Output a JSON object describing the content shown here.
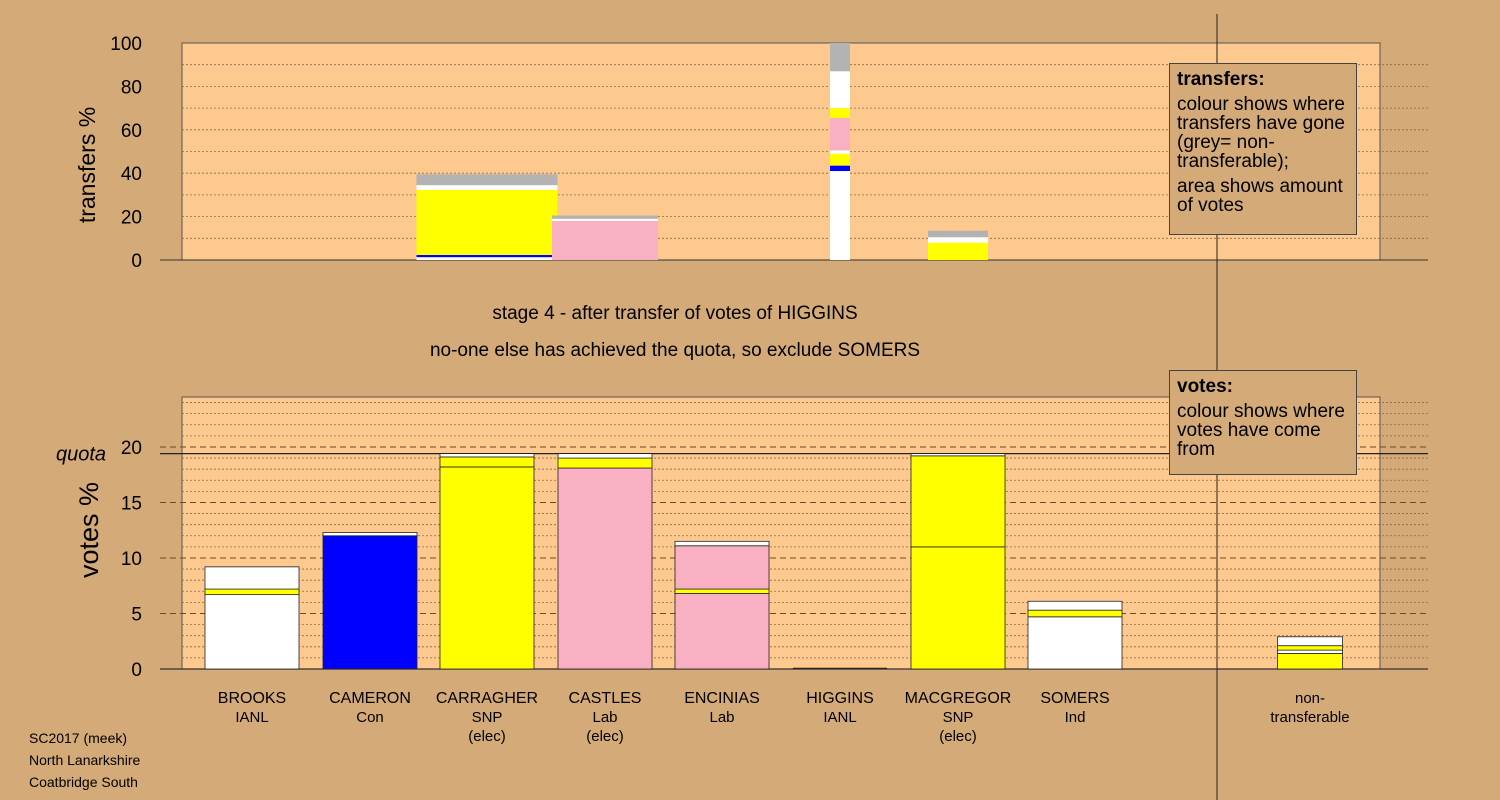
{
  "top_chart": {
    "ylabel": "transfers %",
    "yticks": [
      "0",
      "20",
      "40",
      "60",
      "80",
      "100"
    ]
  },
  "bottom_chart": {
    "ylabel": "votes %",
    "yticks": [
      "0",
      "5",
      "10",
      "15",
      "20"
    ],
    "quota_label": "quota"
  },
  "stage_lines": [
    "stage 4 - after transfer of votes of HIGGINS",
    "no-one else has achieved the quota, so exclude SOMERS"
  ],
  "legend_transfers": {
    "title": "transfers:",
    "text1": "colour shows where transfers have gone (grey= non-transferable);",
    "text2": "area shows amount of votes"
  },
  "legend_votes": {
    "title": "votes:",
    "text1": "colour shows where votes have come from"
  },
  "credits": [
    "SC2017 (meek)",
    "North Lanarkshire",
    "Coatbridge South"
  ],
  "colors": {
    "background": "#d4aa78",
    "plot_area": "#fdc98e",
    "SNP": "#ffff00",
    "Lab": "#f9b0c3",
    "Con": "#0000ff",
    "Ind": "#ffffff",
    "IANL": "#ffffff",
    "non_transferable": "#b3b3b3"
  },
  "chart_data": [
    {
      "type": "bar",
      "name": "transfers",
      "ylabel": "transfers %",
      "ylim": [
        0,
        100
      ],
      "grid": true,
      "bars": [
        {
          "candidate": "CARRAGHER",
          "segments": [
            {
              "color": "white",
              "value": 1.3
            },
            {
              "color": "blue",
              "value": 1.0
            },
            {
              "color": "yellow",
              "value": 3.5
            },
            {
              "color": "yellow",
              "value": 26.5
            },
            {
              "color": "white",
              "value": 2.2
            },
            {
              "color": "grey",
              "value": 5.0
            }
          ]
        },
        {
          "candidate": "CASTLES",
          "segments": [
            {
              "color": "pink",
              "value": 18.0
            },
            {
              "color": "white",
              "value": 1.0
            },
            {
              "color": "grey",
              "value": 1.5
            }
          ]
        },
        {
          "candidate": "HIGGINS",
          "segments": [
            {
              "color": "white",
              "value": 41.0
            },
            {
              "color": "blue",
              "value": 2.5
            },
            {
              "color": "yellow",
              "value": 5.5
            },
            {
              "color": "white",
              "value": 1.5
            },
            {
              "color": "pink",
              "value": 15.0
            },
            {
              "color": "yellow",
              "value": 4.5
            },
            {
              "color": "white",
              "value": 17.0
            },
            {
              "color": "grey",
              "value": 13.0
            }
          ]
        },
        {
          "candidate": "MACGREGOR",
          "segments": [
            {
              "color": "yellow",
              "value": 8.0
            },
            {
              "color": "white",
              "value": 2.5
            },
            {
              "color": "grey",
              "value": 3.0
            }
          ]
        }
      ]
    },
    {
      "type": "bar",
      "name": "votes",
      "ylabel": "votes %",
      "ylim": [
        0,
        20
      ],
      "quota": 19.4,
      "grid": true,
      "categories": [
        "BROOKS",
        "CAMERON",
        "CARRAGHER",
        "CASTLES",
        "ENCINIAS",
        "HIGGINS",
        "MACGREGOR",
        "SOMERS",
        "non-transferable"
      ],
      "category_labels": [
        {
          "lines": [
            "BROOKS",
            "IANL"
          ]
        },
        {
          "lines": [
            "CAMERON",
            "Con"
          ]
        },
        {
          "lines": [
            "CARRAGHER",
            "SNP",
            "(elec)"
          ]
        },
        {
          "lines": [
            "CASTLES",
            "Lab",
            "(elec)"
          ]
        },
        {
          "lines": [
            "ENCINIAS",
            "Lab"
          ]
        },
        {
          "lines": [
            "HIGGINS",
            "IANL"
          ]
        },
        {
          "lines": [
            "MACGREGOR",
            "SNP",
            "(elec)"
          ]
        },
        {
          "lines": [
            "SOMERS",
            "Ind"
          ]
        },
        {
          "lines": [
            "non-",
            "transferable"
          ]
        }
      ],
      "bars": [
        {
          "candidate": "BROOKS",
          "total": 9.2,
          "segments": [
            {
              "color": "white",
              "value": 6.7
            },
            {
              "color": "yellow",
              "value": 0.5
            },
            {
              "color": "white",
              "value": 2.0
            }
          ]
        },
        {
          "candidate": "CAMERON",
          "total": 12.3,
          "segments": [
            {
              "color": "blue",
              "value": 12.0
            },
            {
              "color": "white",
              "value": 0.3
            }
          ]
        },
        {
          "candidate": "CARRAGHER",
          "total": 19.4,
          "segments": [
            {
              "color": "yellow",
              "value": 18.2
            },
            {
              "color": "yellow",
              "value": 0.9
            },
            {
              "color": "white",
              "value": 0.3
            }
          ]
        },
        {
          "candidate": "CASTLES",
          "total": 19.4,
          "segments": [
            {
              "color": "pink",
              "value": 18.1
            },
            {
              "color": "yellow",
              "value": 0.9
            },
            {
              "color": "white",
              "value": 0.4
            }
          ]
        },
        {
          "candidate": "ENCINIAS",
          "total": 11.5,
          "segments": [
            {
              "color": "pink",
              "value": 6.8
            },
            {
              "color": "yellow",
              "value": 0.4
            },
            {
              "color": "pink",
              "value": 3.9
            },
            {
              "color": "white",
              "value": 0.4
            }
          ]
        },
        {
          "candidate": "HIGGINS",
          "total": 0,
          "segments": []
        },
        {
          "candidate": "MACGREGOR",
          "total": 19.4,
          "segments": [
            {
              "color": "yellow",
              "value": 11.0
            },
            {
              "color": "yellow",
              "value": 8.2
            },
            {
              "color": "white",
              "value": 0.2
            }
          ]
        },
        {
          "candidate": "SOMERS",
          "total": 6.1,
          "segments": [
            {
              "color": "white",
              "value": 4.7
            },
            {
              "color": "yellow",
              "value": 0.6
            },
            {
              "color": "white",
              "value": 0.8
            }
          ]
        },
        {
          "candidate": "non-transferable",
          "total": 2.9,
          "segments": [
            {
              "color": "yellow",
              "value": 1.4
            },
            {
              "color": "white",
              "value": 0.3
            },
            {
              "color": "yellow",
              "value": 0.4
            },
            {
              "color": "white",
              "value": 0.8
            }
          ]
        }
      ]
    }
  ]
}
